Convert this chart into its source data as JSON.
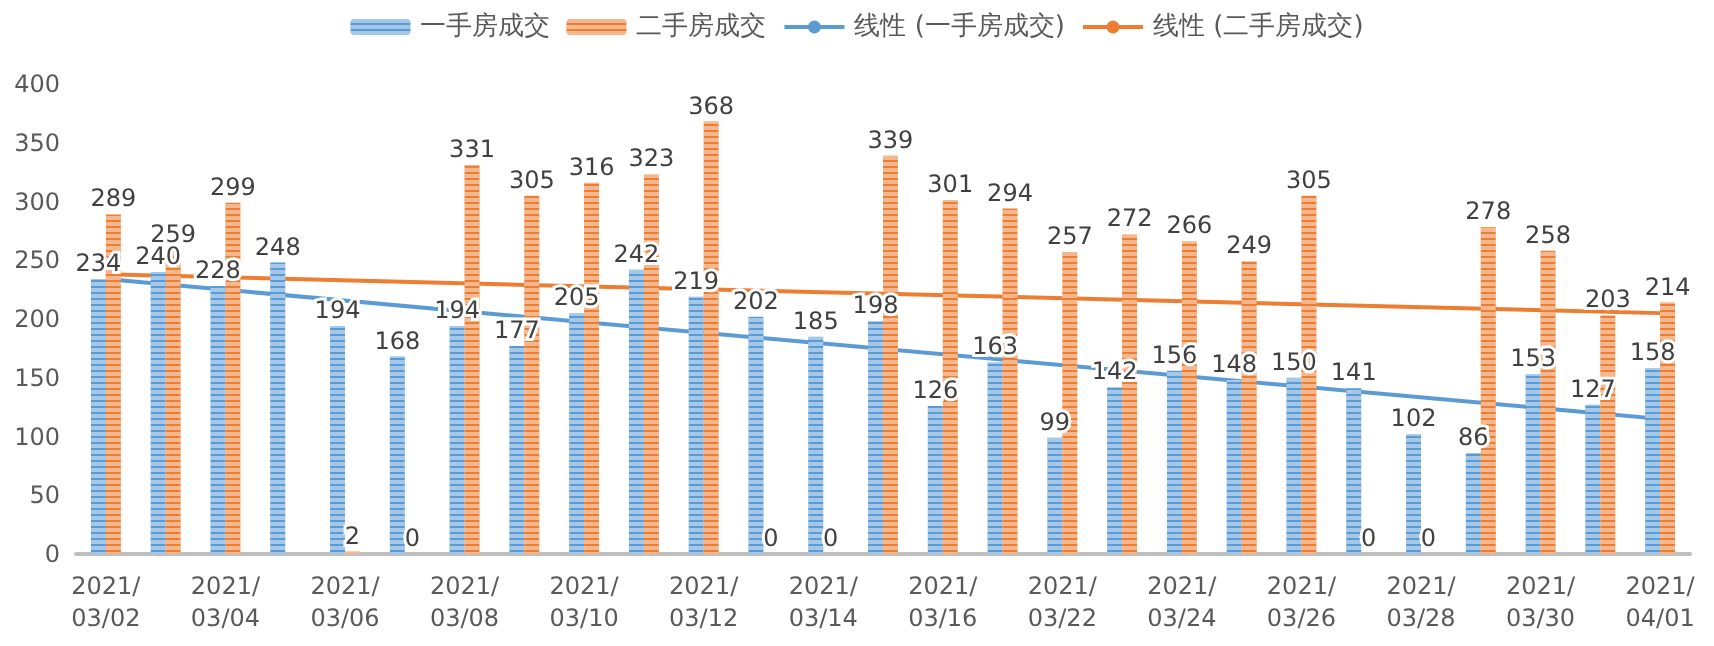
{
  "chart_data": {
    "type": "bar",
    "categories": [
      "2021/03/02",
      null,
      "2021/03/04",
      null,
      "2021/03/06",
      null,
      "2021/03/08",
      null,
      "2021/03/10",
      null,
      "2021/03/12",
      null,
      "2021/03/14",
      null,
      "2021/03/16",
      null,
      "2021/03/22",
      null,
      "2021/03/24",
      null,
      "2021/03/26",
      null,
      "2021/03/28",
      null,
      "2021/03/30",
      null,
      "2021/04/01"
    ],
    "series": [
      {
        "name": "一手房成交",
        "color": "#5b9bd5",
        "values": [
          234,
          240,
          228,
          248,
          194,
          168,
          194,
          177,
          205,
          242,
          219,
          202,
          185,
          198,
          126,
          163,
          99,
          142,
          156,
          148,
          150,
          141,
          102,
          86,
          153,
          127,
          158
        ]
      },
      {
        "name": "二手房成交",
        "color": "#ed7d31",
        "values": [
          289,
          259,
          299,
          null,
          2,
          0,
          331,
          305,
          316,
          323,
          368,
          0,
          0,
          339,
          301,
          294,
          257,
          272,
          266,
          249,
          305,
          0,
          0,
          278,
          258,
          203,
          214
        ]
      },
      {
        "name": "线性 (一手房成交)",
        "type": "line",
        "color": "#5b9bd5",
        "x": [
          "2021/03/02",
          "2021/04/01"
        ],
        "values": [
          234,
          115
        ],
        "value_labels": [
          null,
          null
        ]
      },
      {
        "name": "线性 (二手房成交)",
        "type": "line",
        "color": "#ed7d31",
        "x": [
          "2021/03/02",
          "2021/04/01"
        ],
        "values": [
          238,
          205
        ],
        "value_labels": [
          null,
          null
        ]
      }
    ],
    "ylim": [
      0,
      400
    ],
    "yticks": [
      0,
      50,
      100,
      150,
      200,
      250,
      300,
      350,
      400
    ],
    "grid": false,
    "legend": "top",
    "data_labels": true,
    "marker": "none"
  }
}
